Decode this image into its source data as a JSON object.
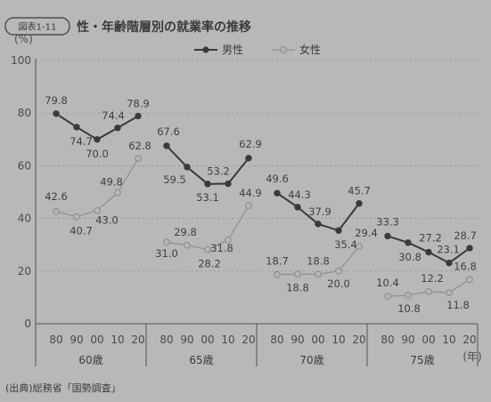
{
  "header": {
    "figure_label": "図表1-11",
    "title": "性・年齢階層別の就業率の推移"
  },
  "source": "(出典)総務省「国勢調査」",
  "colors": {
    "male": "#3a3a3a",
    "female": "#8e8e8e",
    "grid": "#8a8a8a",
    "background": "#b9b8b6"
  },
  "chart_data": {
    "type": "line",
    "y_unit_label": "(%)",
    "x_unit_label": "(年)",
    "ylim": [
      0,
      100
    ],
    "yticks": [
      0,
      20,
      40,
      60,
      80,
      100
    ],
    "x_ticks": [
      "80",
      "90",
      "00",
      "10",
      "20"
    ],
    "grid": true,
    "legend_position": "top-center",
    "groups": [
      {
        "label": "60歳",
        "x": [
          "80",
          "90",
          "00",
          "10",
          "20"
        ],
        "series": [
          {
            "name": "男性",
            "values": [
              79.8,
              74.7,
              70.0,
              74.4,
              78.9
            ]
          },
          {
            "name": "女性",
            "values": [
              42.6,
              40.7,
              43.0,
              49.8,
              62.8
            ]
          }
        ]
      },
      {
        "label": "65歳",
        "x": [
          "80",
          "90",
          "00",
          "10",
          "20"
        ],
        "series": [
          {
            "name": "男性",
            "values": [
              67.6,
              59.5,
              53.1,
              53.2,
              62.9
            ]
          },
          {
            "name": "女性",
            "values": [
              31.0,
              29.8,
              28.2,
              31.8,
              44.9
            ]
          }
        ]
      },
      {
        "label": "70歳",
        "x": [
          "80",
          "90",
          "00",
          "10",
          "20"
        ],
        "series": [
          {
            "name": "男性",
            "values": [
              49.6,
              44.3,
              37.9,
              35.4,
              45.7
            ]
          },
          {
            "name": "女性",
            "values": [
              18.7,
              18.8,
              18.8,
              20.0,
              29.4
            ]
          }
        ]
      },
      {
        "label": "75歳",
        "x": [
          "80",
          "90",
          "00",
          "10",
          "20"
        ],
        "series": [
          {
            "name": "男性",
            "values": [
              33.3,
              30.8,
              27.2,
              23.1,
              28.7
            ]
          },
          {
            "name": "女性",
            "values": [
              10.4,
              10.8,
              12.2,
              11.8,
              16.8
            ]
          }
        ]
      }
    ]
  }
}
